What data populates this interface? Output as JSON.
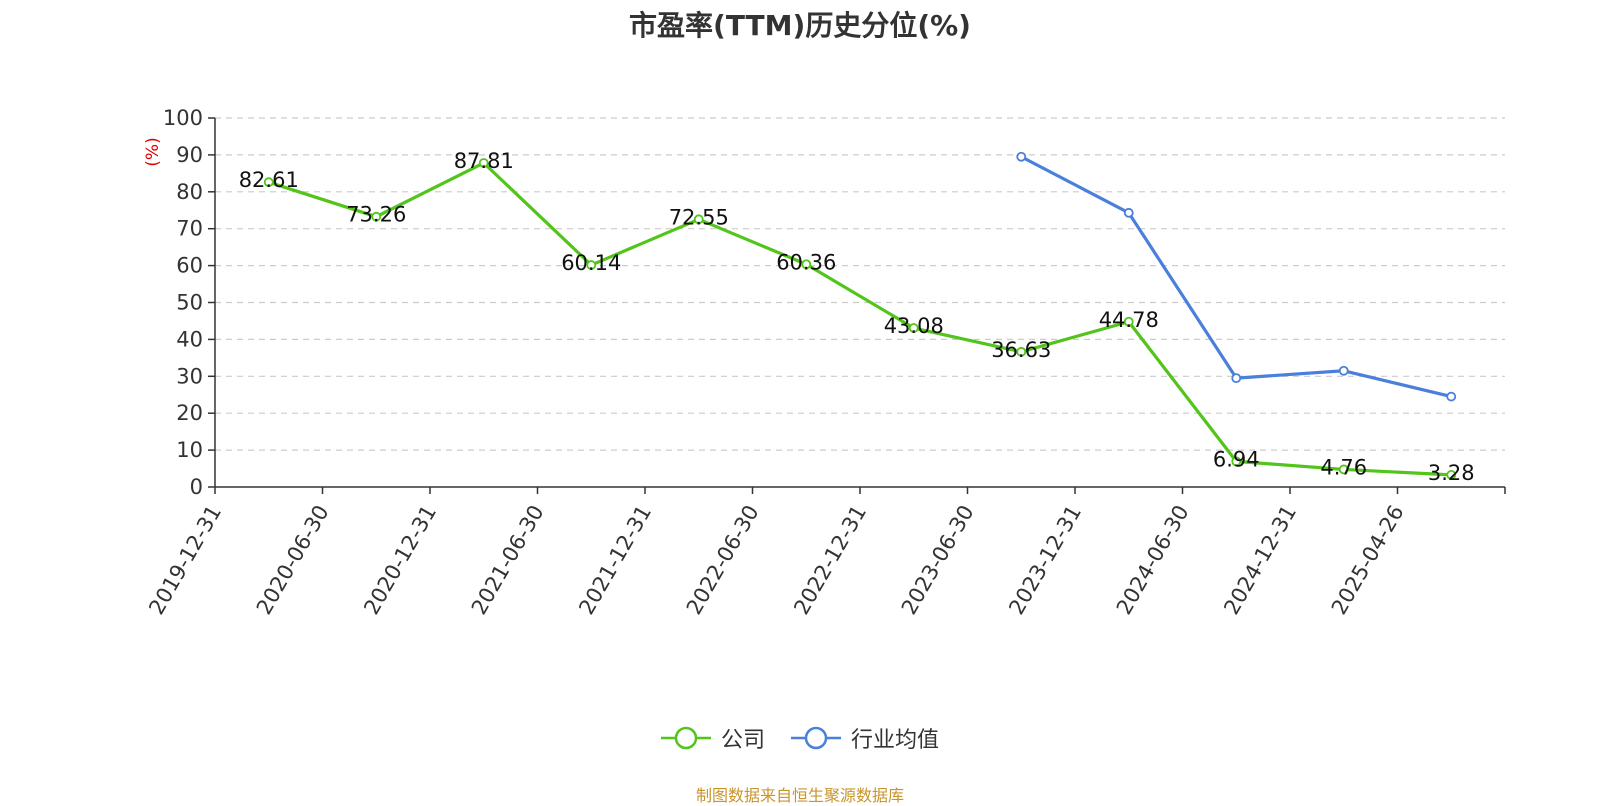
{
  "chart_data": {
    "type": "line",
    "title": "市盈率(TTM)历史分位(%)",
    "ylabel": "(%)",
    "xlabel": "",
    "ylim": [
      0,
      100
    ],
    "yticks": [
      0,
      10,
      20,
      30,
      40,
      50,
      60,
      70,
      80,
      90,
      100
    ],
    "categories": [
      "2019-12-31",
      "2020-06-30",
      "2020-12-31",
      "2021-06-30",
      "2021-12-31",
      "2022-06-30",
      "2022-12-31",
      "2023-06-30",
      "2023-12-31",
      "2024-06-30",
      "2024-12-31",
      "2025-04-26"
    ],
    "series": [
      {
        "name": "公司",
        "color": "#52c41a",
        "values": [
          82.61,
          73.26,
          87.81,
          60.14,
          72.55,
          60.36,
          43.08,
          36.63,
          44.78,
          6.94,
          4.76,
          3.28
        ],
        "show_labels": true
      },
      {
        "name": "行业均值",
        "color": "#4a7fdb",
        "values": [
          null,
          null,
          null,
          null,
          null,
          null,
          null,
          89.5,
          74.3,
          29.5,
          31.5,
          24.5
        ],
        "show_labels": false
      }
    ],
    "grid": true,
    "legend_position": "bottom-center"
  },
  "source_note": "制图数据来自恒生聚源数据库",
  "colors": {
    "axis": "#333333",
    "grid": "#cccccc",
    "ylabel": "#e00000",
    "source_note": "#c8952c"
  }
}
